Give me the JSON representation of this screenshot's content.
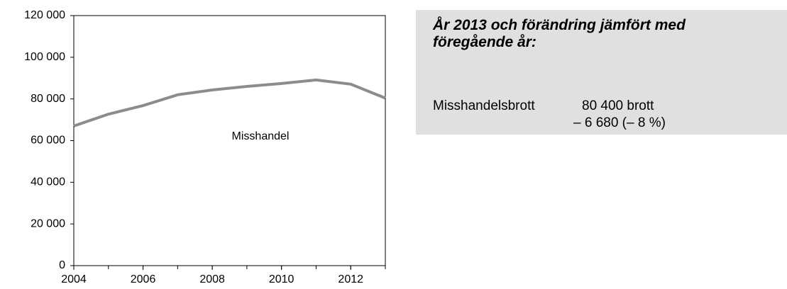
{
  "chart_data": {
    "type": "line",
    "x": [
      2004,
      2005,
      2006,
      2007,
      2008,
      2009,
      2010,
      2011,
      2012,
      2013
    ],
    "series": [
      {
        "name": "Misshandel",
        "color": "#8c8c8c",
        "values": [
          67000,
          72700,
          76800,
          82000,
          84300,
          86000,
          87400,
          89100,
          87100,
          80400
        ]
      }
    ],
    "xlim": [
      2004,
      2013
    ],
    "xticks": [
      2004,
      2006,
      2008,
      2010,
      2012
    ],
    "ylim": [
      0,
      120000
    ],
    "yticks": [
      0,
      {
        "value": 20000,
        "label": "20 000"
      },
      {
        "value": 40000,
        "label": "40 000"
      },
      {
        "value": 60000,
        "label": "60 000"
      },
      {
        "value": 80000,
        "label": "80 000"
      },
      {
        "value": 100000,
        "label": "100 000"
      },
      {
        "value": 120000,
        "label": "120 000"
      }
    ],
    "annotation": "Misshandel",
    "grid": false
  },
  "info_box": {
    "title": "År 2013 och förändring jämfört med föregående år:",
    "label": "Misshandelsbrott",
    "value": "80 400 brott",
    "change": "– 6 680 (– 8 %)"
  }
}
